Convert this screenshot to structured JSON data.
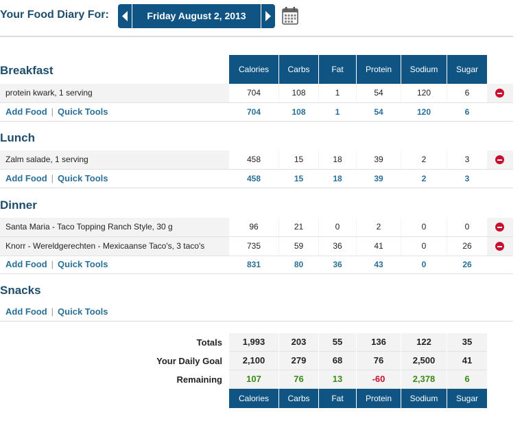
{
  "header": {
    "title": "Your Food Diary For:",
    "date": "Friday August 2, 2013"
  },
  "columns": [
    "Calories",
    "Carbs",
    "Fat",
    "Protein",
    "Sodium",
    "Sugar"
  ],
  "links": {
    "add_food": "Add Food",
    "separator": "|",
    "quick_tools": "Quick Tools"
  },
  "meals": {
    "breakfast": {
      "title": "Breakfast",
      "foods": [
        {
          "name": "protein kwark, 1 serving",
          "values": [
            "704",
            "108",
            "1",
            "54",
            "120",
            "6"
          ]
        }
      ],
      "totals": [
        "704",
        "108",
        "1",
        "54",
        "120",
        "6"
      ]
    },
    "lunch": {
      "title": "Lunch",
      "foods": [
        {
          "name": "Zalm salade, 1 serving",
          "values": [
            "458",
            "15",
            "18",
            "39",
            "2",
            "3"
          ]
        }
      ],
      "totals": [
        "458",
        "15",
        "18",
        "39",
        "2",
        "3"
      ]
    },
    "dinner": {
      "title": "Dinner",
      "foods": [
        {
          "name": "Santa Maria - Taco Topping Ranch Style, 30 g",
          "values": [
            "96",
            "21",
            "0",
            "2",
            "0",
            "0"
          ]
        },
        {
          "name": "Knorr - Wereldgerechten - Mexicaanse Taco's, 3 taco's",
          "values": [
            "735",
            "59",
            "36",
            "41",
            "0",
            "26"
          ]
        }
      ],
      "totals": [
        "831",
        "80",
        "36",
        "43",
        "0",
        "26"
      ]
    },
    "snacks": {
      "title": "Snacks",
      "foods": [],
      "totals": []
    }
  },
  "summary": {
    "totals": {
      "label": "Totals",
      "values": [
        "1,993",
        "203",
        "55",
        "136",
        "122",
        "35"
      ]
    },
    "goal": {
      "label": "Your Daily Goal",
      "values": [
        "2,100",
        "279",
        "68",
        "76",
        "2,500",
        "41"
      ]
    },
    "remaining": {
      "label": "Remaining",
      "values": [
        "107",
        "76",
        "13",
        "-60",
        "2,378",
        "6"
      ]
    }
  },
  "colors": {
    "header_blue": "#0f5482",
    "title_blue": "#1e4d6b",
    "link_blue": "#2a6f97",
    "remaining_positive": "#3a8a17",
    "remaining_negative": "#c8102e",
    "delete_red": "#c8102e"
  },
  "icons": {
    "prev": "chevron-left-icon",
    "next": "chevron-right-icon",
    "calendar": "calendar-icon",
    "delete": "remove-circle-icon"
  }
}
